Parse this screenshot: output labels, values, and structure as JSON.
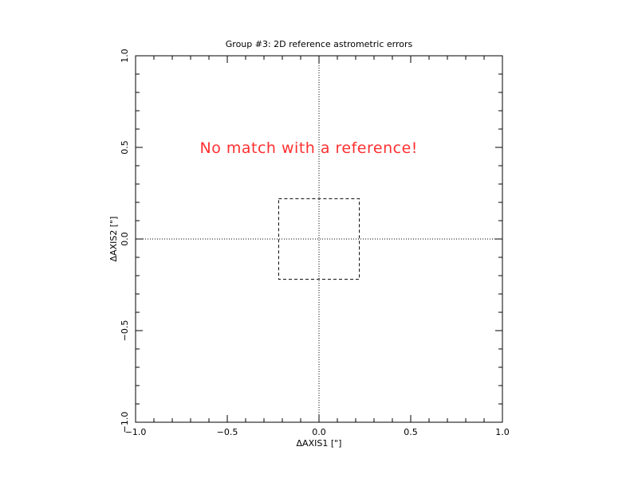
{
  "chart_data": {
    "type": "scatter",
    "title": "Group #3: 2D reference astrometric errors",
    "xlabel": "ΔAXIS1 [\"]",
    "ylabel": "ΔAXIS2 [\"]",
    "xlim": [
      -1.0,
      1.0
    ],
    "ylim": [
      -1.0,
      1.0
    ],
    "x_ticks": [
      {
        "value": -1.0,
        "label": "−1.0"
      },
      {
        "value": -0.5,
        "label": "−0.5"
      },
      {
        "value": 0.0,
        "label": "0.0"
      },
      {
        "value": 0.5,
        "label": "0.5"
      },
      {
        "value": 1.0,
        "label": "1.0"
      }
    ],
    "y_ticks": [
      {
        "value": -1.0,
        "label": "−1.0"
      },
      {
        "value": -0.5,
        "label": "−0.5"
      },
      {
        "value": 0.0,
        "label": "0.0"
      },
      {
        "value": 0.5,
        "label": "0.5"
      },
      {
        "value": 1.0,
        "label": "1.0"
      }
    ],
    "minor_tick_step": 0.1,
    "zero_lines": {
      "x": 0.0,
      "y": 0.0,
      "style": "dotted"
    },
    "error_box": {
      "x_range": [
        -0.22,
        0.22
      ],
      "y_range": [
        -0.22,
        0.22
      ],
      "style": "dashed"
    },
    "points": [],
    "annotation": {
      "text": "No match with a reference!",
      "x": -0.65,
      "y": 0.5,
      "color": "#ff3030"
    },
    "grid": false,
    "legend": "none"
  }
}
